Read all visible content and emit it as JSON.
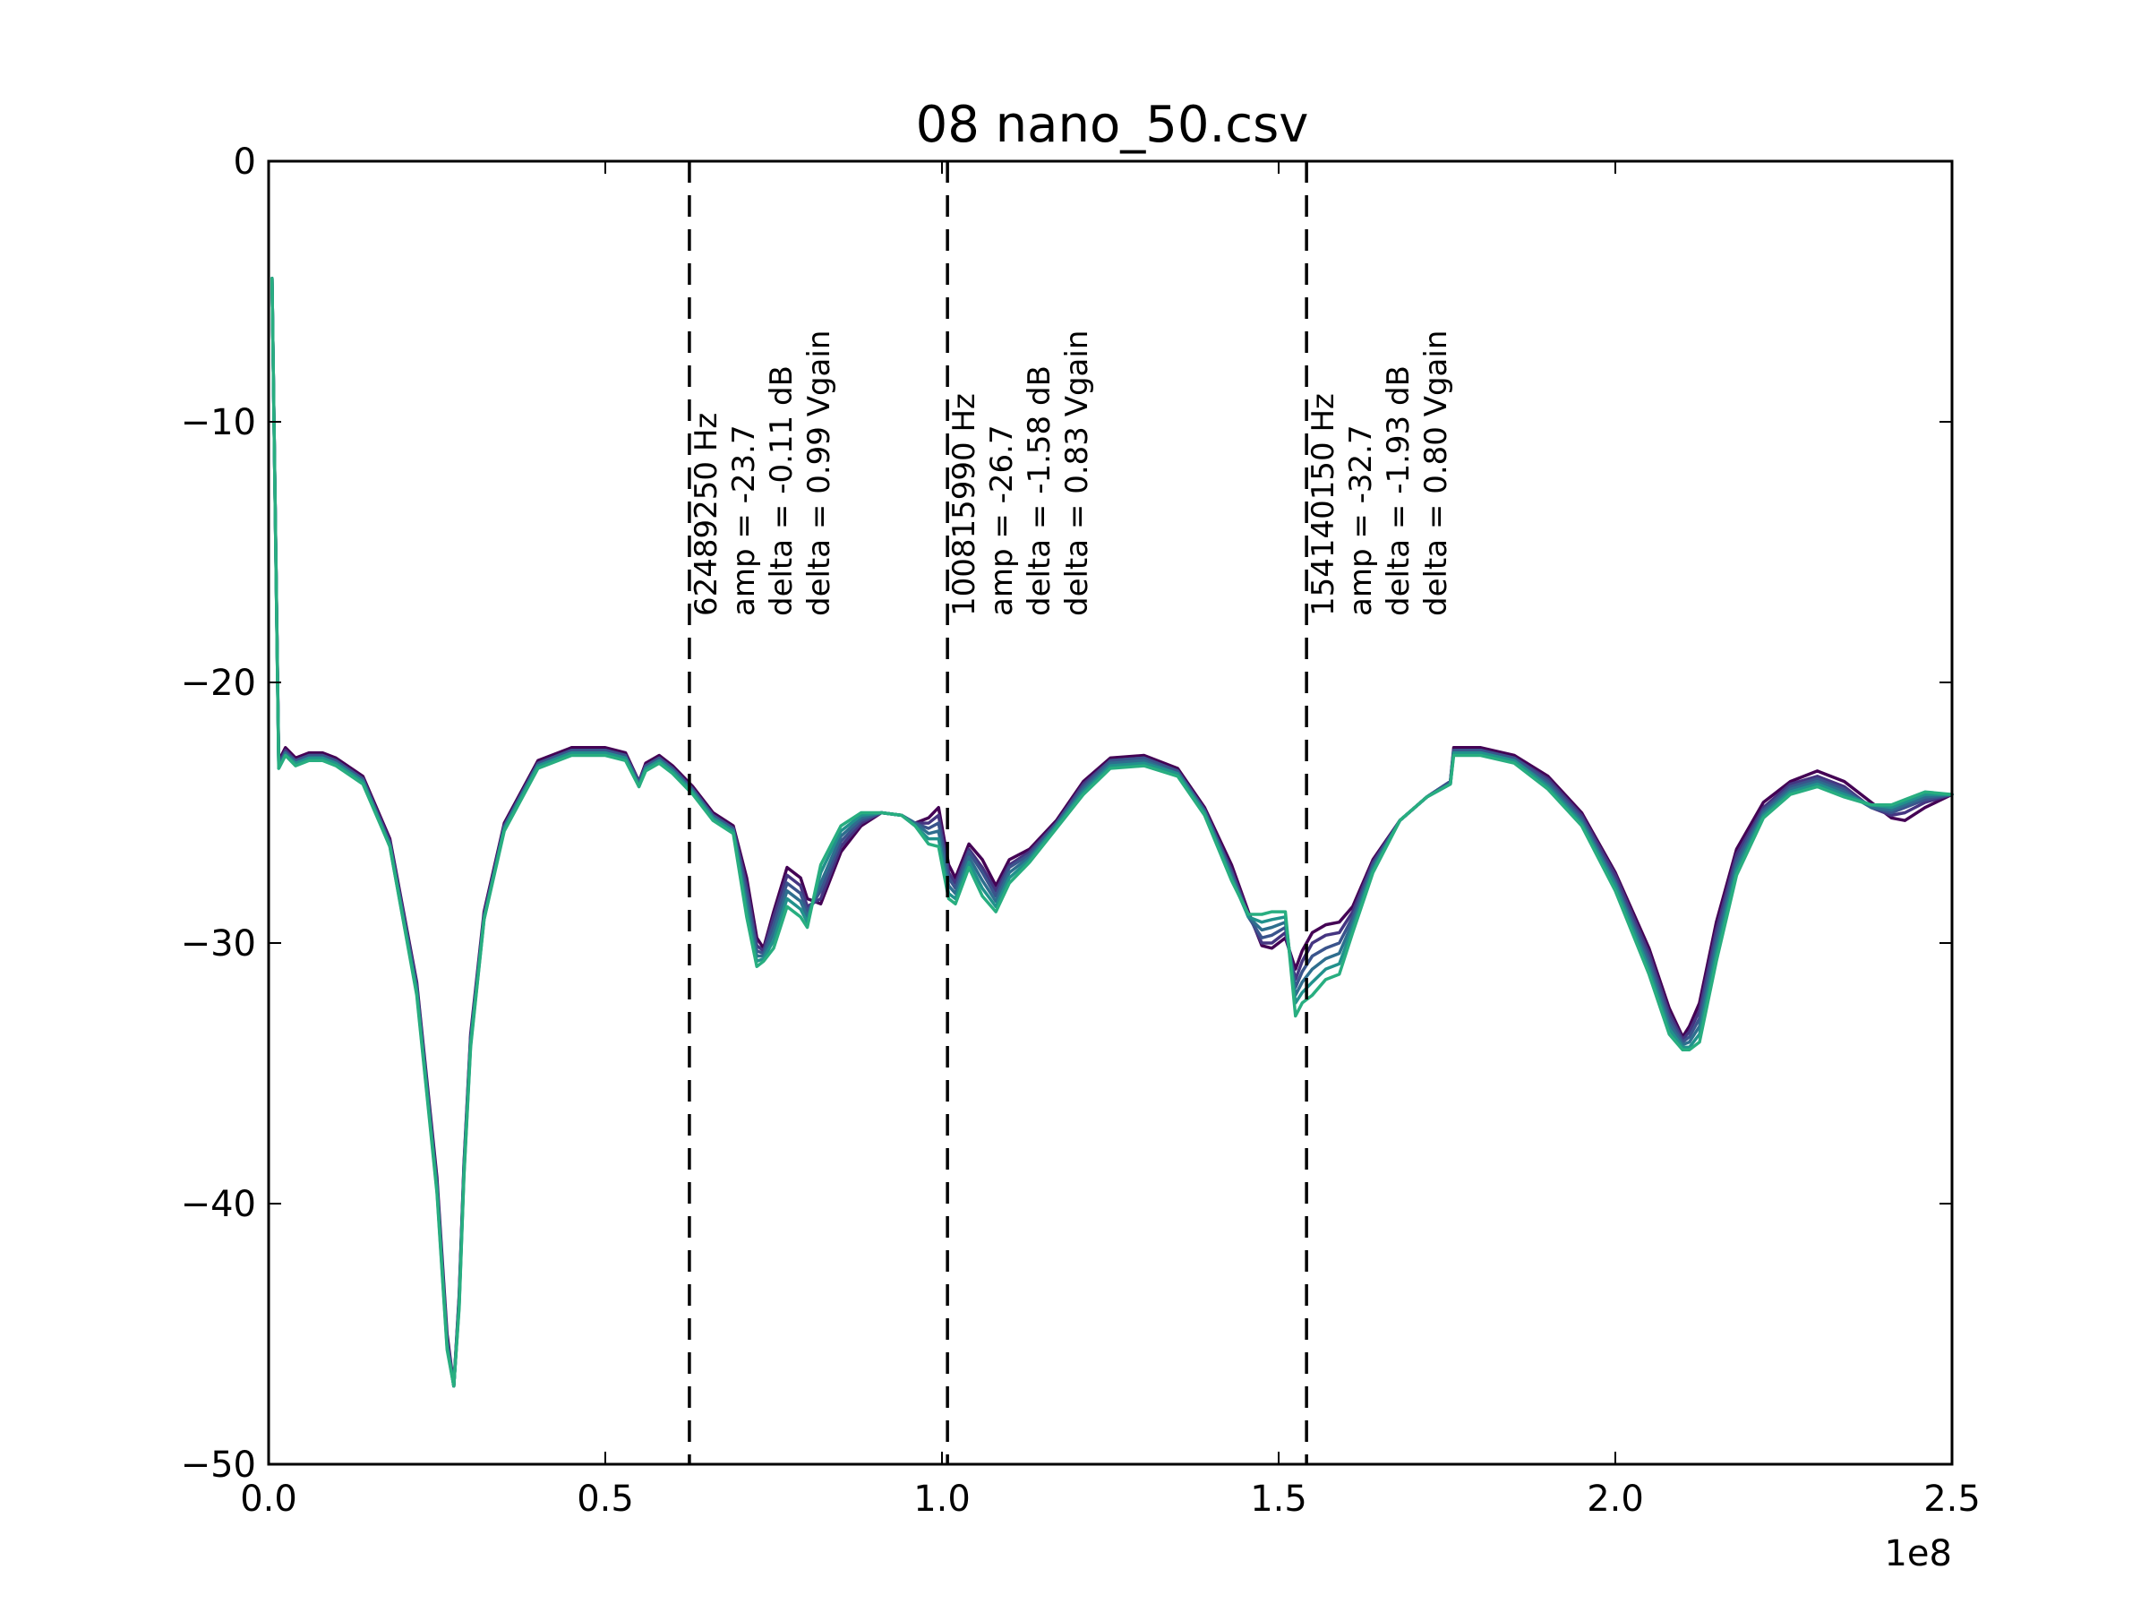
{
  "chart_data": {
    "type": "line",
    "title": "08 nano_50.csv",
    "xlabel": "",
    "ylabel": "",
    "xlim": [
      0,
      250000000
    ],
    "ylim": [
      -50,
      0
    ],
    "x_offset_label": "1e8",
    "x_ticks": [
      0,
      50000000,
      100000000,
      150000000,
      200000000,
      250000000
    ],
    "x_tick_labels": [
      "0.0",
      "0.5",
      "1.0",
      "1.5",
      "2.0",
      "2.5"
    ],
    "y_ticks": [
      0,
      -10,
      -20,
      -30,
      -40,
      -50
    ],
    "y_tick_labels": [
      "0",
      "−10",
      "−20",
      "−30",
      "−40",
      "−50"
    ],
    "grid": false,
    "markers": [
      {
        "x": 62489250,
        "lines": [
          "62489250 Hz",
          "amp = -23.7",
          "delta = -0.11 dB",
          "delta = 0.99 Vgain"
        ]
      },
      {
        "x": 100815990,
        "lines": [
          "100815990 Hz",
          "amp = -26.7",
          "delta = -1.58 dB",
          "delta = 0.83 Vgain"
        ]
      },
      {
        "x": 154140150,
        "lines": [
          "154140150 Hz",
          "amp = -32.7",
          "delta = -1.93 dB",
          "delta = 0.80 Vgain"
        ]
      }
    ],
    "x": [
      500000,
      1500000,
      2500000,
      4000000,
      6000000,
      8000000,
      10000000,
      14000000,
      18000000,
      22000000,
      25000000,
      26500000,
      27500000,
      28300000,
      29000000,
      30000000,
      32000000,
      35000000,
      40000000,
      45000000,
      50000000,
      53000000,
      55000000,
      56000000,
      58000000,
      60000000,
      63000000,
      66000000,
      69000000,
      71000000,
      72500000,
      73500000,
      75000000,
      77000000,
      79000000,
      80000000,
      82000000,
      85000000,
      88000000,
      91000000,
      94000000,
      96000000,
      98000000,
      99500000,
      101000000,
      102000000,
      104000000,
      106000000,
      108000000,
      110000000,
      113000000,
      117000000,
      121000000,
      125000000,
      130000000,
      135000000,
      139000000,
      143000000,
      145500000,
      147500000,
      149000000,
      151000000,
      152500000,
      153500000,
      155000000,
      157000000,
      159000000,
      161000000,
      164000000,
      168000000,
      172000000,
      175500000,
      176000000,
      180000000,
      185000000,
      190000000,
      195000000,
      200000000,
      205000000,
      208000000,
      210000000,
      211000000,
      212500000,
      215000000,
      218000000,
      222000000,
      226000000,
      230000000,
      234000000,
      238000000,
      241000000,
      243000000,
      246000000,
      250000000
    ],
    "series": [
      {
        "color": "#440154",
        "values": [
          -4.5,
          -23.0,
          -22.5,
          -22.9,
          -22.7,
          -22.7,
          -22.9,
          -23.6,
          -26.0,
          -31.5,
          -39.0,
          -45.0,
          -47.0,
          -43.5,
          -38.5,
          -33.5,
          -28.8,
          -25.4,
          -23.0,
          -22.5,
          -22.5,
          -22.7,
          -23.8,
          -23.1,
          -22.8,
          -23.2,
          -24.0,
          -25.0,
          -25.5,
          -27.5,
          -29.8,
          -30.2,
          -28.8,
          -27.1,
          -27.5,
          -28.3,
          -28.5,
          -26.5,
          -25.5,
          -25.0,
          -25.1,
          -25.4,
          -25.2,
          -24.8,
          -27.0,
          -27.5,
          -26.2,
          -26.8,
          -27.8,
          -26.8,
          -26.4,
          -25.3,
          -23.8,
          -22.9,
          -22.8,
          -23.3,
          -24.8,
          -27.0,
          -28.8,
          -30.1,
          -30.2,
          -29.8,
          -31.0,
          -30.3,
          -29.6,
          -29.3,
          -29.2,
          -28.6,
          -26.8,
          -25.3,
          -24.4,
          -23.8,
          -22.5,
          -22.5,
          -22.8,
          -23.6,
          -25.0,
          -27.3,
          -30.2,
          -32.5,
          -33.6,
          -33.2,
          -32.3,
          -29.2,
          -26.4,
          -24.6,
          -23.8,
          -23.4,
          -23.8,
          -24.6,
          -25.2,
          -25.3,
          -24.8,
          -24.3
        ]
      },
      {
        "color": "#453581",
        "values": [
          -4.5,
          -23.1,
          -22.6,
          -23.0,
          -22.8,
          -22.8,
          -23.0,
          -23.7,
          -26.1,
          -31.6,
          -39.2,
          -45.2,
          -47.0,
          -43.6,
          -38.6,
          -33.6,
          -28.9,
          -25.5,
          -23.1,
          -22.6,
          -22.6,
          -22.8,
          -23.8,
          -23.2,
          -22.9,
          -23.3,
          -24.1,
          -25.1,
          -25.6,
          -27.8,
          -30.1,
          -30.3,
          -29.0,
          -27.4,
          -27.8,
          -28.6,
          -28.3,
          -26.3,
          -25.4,
          -25.0,
          -25.1,
          -25.4,
          -25.4,
          -25.1,
          -27.3,
          -27.7,
          -26.4,
          -27.1,
          -28.0,
          -27.0,
          -26.5,
          -25.4,
          -23.9,
          -23.0,
          -22.9,
          -23.4,
          -24.9,
          -27.2,
          -28.9,
          -30.0,
          -30.0,
          -29.6,
          -31.4,
          -30.7,
          -30.0,
          -29.7,
          -29.6,
          -28.8,
          -26.9,
          -25.3,
          -24.4,
          -23.8,
          -22.6,
          -22.6,
          -22.9,
          -23.7,
          -25.1,
          -27.4,
          -30.4,
          -32.7,
          -33.7,
          -33.4,
          -32.6,
          -29.5,
          -26.6,
          -24.8,
          -23.9,
          -23.6,
          -24.0,
          -24.8,
          -25.1,
          -25.0,
          -24.6,
          -24.3
        ]
      },
      {
        "color": "#3a548c",
        "values": [
          -4.5,
          -23.2,
          -22.7,
          -23.0,
          -22.8,
          -22.8,
          -23.0,
          -23.7,
          -26.2,
          -31.7,
          -39.3,
          -45.3,
          -47.0,
          -43.7,
          -38.7,
          -33.7,
          -29.0,
          -25.5,
          -23.1,
          -22.6,
          -22.6,
          -22.8,
          -23.9,
          -23.2,
          -22.9,
          -23.3,
          -24.1,
          -25.1,
          -25.6,
          -28.1,
          -30.3,
          -30.4,
          -29.3,
          -27.7,
          -28.1,
          -28.8,
          -28.0,
          -26.1,
          -25.3,
          -25.0,
          -25.1,
          -25.4,
          -25.6,
          -25.4,
          -27.5,
          -27.9,
          -26.5,
          -27.3,
          -28.2,
          -27.1,
          -26.6,
          -25.4,
          -24.0,
          -23.0,
          -22.9,
          -23.4,
          -24.9,
          -27.3,
          -29.0,
          -29.8,
          -29.7,
          -29.4,
          -31.7,
          -31.1,
          -30.5,
          -30.2,
          -30.0,
          -29.0,
          -27.0,
          -25.3,
          -24.4,
          -23.8,
          -22.6,
          -22.6,
          -22.9,
          -23.8,
          -25.2,
          -27.6,
          -30.6,
          -32.9,
          -33.8,
          -33.6,
          -32.9,
          -29.8,
          -26.8,
          -24.9,
          -24.0,
          -23.7,
          -24.1,
          -24.8,
          -25.0,
          -24.8,
          -24.5,
          -24.3
        ]
      },
      {
        "color": "#2e6e8e",
        "values": [
          -4.5,
          -23.2,
          -22.7,
          -23.1,
          -22.9,
          -22.9,
          -23.1,
          -23.8,
          -26.2,
          -31.8,
          -39.4,
          -45.4,
          -47.0,
          -43.8,
          -38.8,
          -33.8,
          -29.0,
          -25.6,
          -23.2,
          -22.7,
          -22.7,
          -22.9,
          -23.9,
          -23.3,
          -23.0,
          -23.4,
          -24.2,
          -25.2,
          -25.7,
          -28.4,
          -30.5,
          -30.5,
          -29.6,
          -28.0,
          -28.4,
          -29.0,
          -27.7,
          -25.9,
          -25.2,
          -25.0,
          -25.1,
          -25.4,
          -25.8,
          -25.7,
          -27.8,
          -28.1,
          -26.7,
          -27.6,
          -28.4,
          -27.3,
          -26.7,
          -25.5,
          -24.1,
          -23.1,
          -23.0,
          -23.5,
          -25.0,
          -27.4,
          -29.0,
          -29.5,
          -29.4,
          -29.2,
          -32.0,
          -31.5,
          -31.0,
          -30.6,
          -30.4,
          -29.2,
          -27.1,
          -25.3,
          -24.4,
          -23.9,
          -22.7,
          -22.7,
          -23.0,
          -23.9,
          -25.3,
          -27.7,
          -30.8,
          -33.1,
          -33.9,
          -33.8,
          -33.2,
          -30.1,
          -27.0,
          -25.0,
          -24.1,
          -23.8,
          -24.2,
          -24.8,
          -24.9,
          -24.7,
          -24.4,
          -24.3
        ]
      },
      {
        "color": "#21918c",
        "values": [
          -4.5,
          -23.3,
          -22.8,
          -23.1,
          -22.9,
          -22.9,
          -23.1,
          -23.8,
          -26.3,
          -31.9,
          -39.5,
          -45.5,
          -47.0,
          -43.9,
          -38.9,
          -33.9,
          -29.1,
          -25.6,
          -23.2,
          -22.7,
          -22.7,
          -22.9,
          -24.0,
          -23.3,
          -23.0,
          -23.4,
          -24.2,
          -25.2,
          -25.7,
          -28.7,
          -30.7,
          -30.6,
          -29.9,
          -28.3,
          -28.7,
          -29.2,
          -27.3,
          -25.7,
          -25.1,
          -25.0,
          -25.1,
          -25.5,
          -26.0,
          -26.0,
          -28.1,
          -28.3,
          -26.9,
          -27.9,
          -28.6,
          -27.5,
          -26.8,
          -25.5,
          -24.2,
          -23.2,
          -23.1,
          -23.5,
          -25.0,
          -27.5,
          -29.0,
          -29.2,
          -29.1,
          -29.0,
          -32.3,
          -31.9,
          -31.5,
          -31.0,
          -30.8,
          -29.4,
          -27.2,
          -25.3,
          -24.4,
          -23.9,
          -22.7,
          -22.7,
          -23.0,
          -24.0,
          -25.4,
          -27.8,
          -31.0,
          -33.3,
          -34.0,
          -34.0,
          -33.5,
          -30.4,
          -27.2,
          -25.1,
          -24.2,
          -23.9,
          -24.3,
          -24.7,
          -24.8,
          -24.6,
          -24.3,
          -24.3
        ]
      },
      {
        "color": "#28ae80",
        "values": [
          -4.5,
          -23.3,
          -22.8,
          -23.2,
          -23.0,
          -23.0,
          -23.2,
          -23.9,
          -26.3,
          -32.0,
          -39.6,
          -45.6,
          -47.0,
          -44.0,
          -39.0,
          -34.0,
          -29.1,
          -25.7,
          -23.3,
          -22.8,
          -22.8,
          -23.0,
          -24.0,
          -23.4,
          -23.1,
          -23.5,
          -24.3,
          -25.3,
          -25.8,
          -29.0,
          -30.9,
          -30.7,
          -30.2,
          -28.6,
          -29.0,
          -29.4,
          -27.0,
          -25.5,
          -25.0,
          -25.0,
          -25.1,
          -25.5,
          -26.2,
          -26.3,
          -28.3,
          -28.5,
          -27.1,
          -28.2,
          -28.8,
          -27.7,
          -26.9,
          -25.6,
          -24.3,
          -23.3,
          -23.2,
          -23.6,
          -25.1,
          -27.6,
          -28.9,
          -28.9,
          -28.8,
          -28.8,
          -32.8,
          -32.3,
          -32.0,
          -31.4,
          -31.2,
          -29.6,
          -27.3,
          -25.3,
          -24.4,
          -23.9,
          -22.8,
          -22.8,
          -23.1,
          -24.1,
          -25.5,
          -28.0,
          -31.2,
          -33.5,
          -34.1,
          -34.1,
          -33.8,
          -30.7,
          -27.4,
          -25.2,
          -24.3,
          -24.0,
          -24.4,
          -24.7,
          -24.7,
          -24.5,
          -24.2,
          -24.3
        ]
      }
    ]
  }
}
